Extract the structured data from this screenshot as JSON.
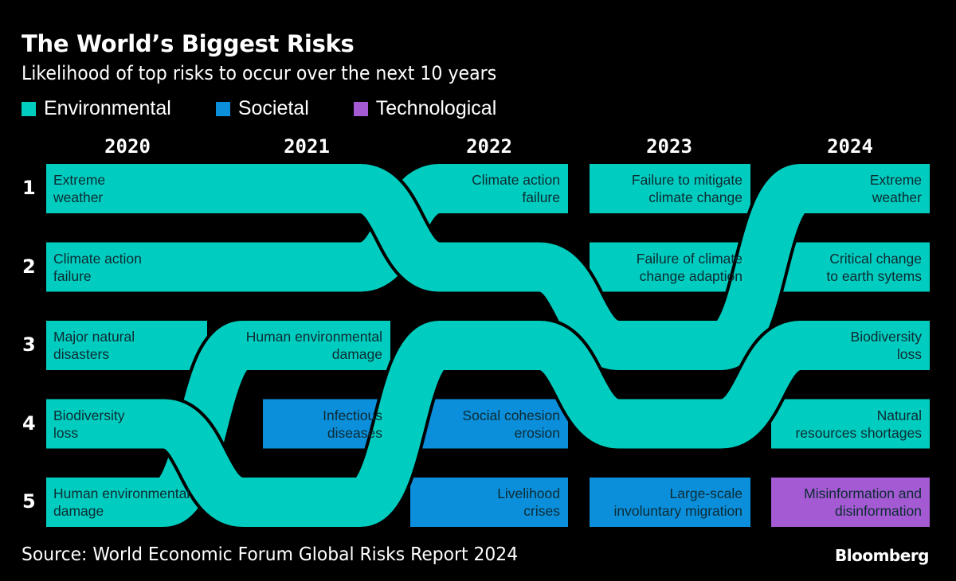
{
  "title": "The World’s Biggest Risks",
  "subtitle": "Likelihood of top risks to occur over the next 10 years",
  "legend": [
    {
      "label": "Environmental",
      "color": "#00cdbf"
    },
    {
      "label": "Societal",
      "color": "#0b8fdb"
    },
    {
      "label": "Technological",
      "color": "#a35ad2"
    }
  ],
  "source": "Source: World Economic Forum Global Risks Report 2024",
  "brand": "Bloomberg",
  "chart_data": {
    "type": "bump",
    "years": [
      "2020",
      "2021",
      "2022",
      "2023",
      "2024"
    ],
    "ranks": [
      "1",
      "2",
      "3",
      "4",
      "5"
    ],
    "flows": [
      {
        "category": "Environmental",
        "years": [
          "2020",
          "2021",
          "2022"
        ],
        "ranks": [
          2,
          2,
          1
        ],
        "labels": [
          {
            "year": "2020",
            "text": [
              "Climate action",
              "failure"
            ]
          },
          {
            "year": "2022",
            "text": [
              "Climate action",
              "failure"
            ]
          }
        ]
      },
      {
        "category": "Environmental",
        "years": [
          "2020",
          "2021"
        ],
        "ranks": [
          5,
          3
        ],
        "labels": [
          {
            "year": "2020",
            "text": [
              "Human environmental",
              "damage"
            ]
          },
          {
            "year": "2021",
            "text": [
              "Human environmental",
              "damage"
            ]
          }
        ]
      },
      {
        "category": "Environmental",
        "years": [
          "2020",
          "2021",
          "2022",
          "2023",
          "2024"
        ],
        "ranks": [
          1,
          1,
          2,
          3,
          1
        ],
        "labels": [
          {
            "year": "2020",
            "text": [
              "Extreme",
              "weather"
            ]
          },
          {
            "year": "2024",
            "text": [
              "Extreme",
              "weather"
            ]
          }
        ]
      },
      {
        "category": "Environmental",
        "years": [
          "2020",
          "2021",
          "2022",
          "2023",
          "2024"
        ],
        "ranks": [
          4,
          5,
          3,
          4,
          3
        ],
        "labels": [
          {
            "year": "2020",
            "text": [
              "Biodiversity",
              "loss"
            ]
          },
          {
            "year": "2024",
            "text": [
              "Biodiversity",
              "loss"
            ]
          }
        ]
      }
    ],
    "single": [
      {
        "year": "2020",
        "rank": 3,
        "category": "Environmental",
        "text": [
          "Major natural",
          "disasters"
        ]
      },
      {
        "year": "2021",
        "rank": 4,
        "category": "Societal",
        "text": [
          "Infectious",
          "diseases"
        ]
      },
      {
        "year": "2022",
        "rank": 4,
        "category": "Societal",
        "text": [
          "Social cohesion",
          "erosion"
        ]
      },
      {
        "year": "2022",
        "rank": 5,
        "category": "Societal",
        "text": [
          "Livelihood",
          "crises"
        ]
      },
      {
        "year": "2023",
        "rank": 1,
        "category": "Environmental",
        "text": [
          "Failure to mitigate",
          "climate change"
        ]
      },
      {
        "year": "2023",
        "rank": 2,
        "category": "Environmental",
        "text": [
          "Failure of climate",
          "change adaption"
        ]
      },
      {
        "year": "2023",
        "rank": 5,
        "category": "Societal",
        "text": [
          "Large-scale",
          "involuntary migration"
        ]
      },
      {
        "year": "2024",
        "rank": 2,
        "category": "Environmental",
        "text": [
          "Critical change",
          "to earth sytems"
        ]
      },
      {
        "year": "2024",
        "rank": 4,
        "category": "Environmental",
        "text": [
          "Natural",
          "resources shortages"
        ]
      },
      {
        "year": "2024",
        "rank": 5,
        "category": "Technological",
        "text": [
          "Misinformation and",
          "disinformation"
        ]
      }
    ]
  }
}
